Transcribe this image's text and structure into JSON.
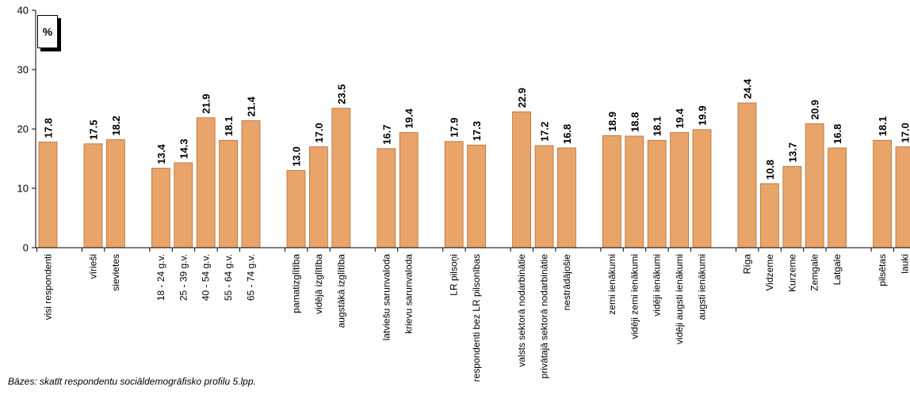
{
  "chart_data": {
    "type": "bar",
    "ylim": [
      0,
      40
    ],
    "yticks": [
      0,
      10,
      20,
      30,
      40
    ],
    "unit_label": "%",
    "bar_color": "#e8a469",
    "bar_edge_color": "#b86f35",
    "categories": [
      "visi respondenti",
      "vīrieši",
      "sievietes",
      "18 - 24 g.v.",
      "25 - 39 g.v.",
      "40 - 54 g.v.",
      "55 - 64 g.v.",
      "65 - 74 g.v.",
      "pamatizglītība",
      "vidējā izglītība",
      "augstākā izglītība",
      "latviešu sarunvaloda",
      "krievu sarunvaloda",
      "LR pilsoņi",
      "respondenti bez LR pilsonības",
      "valsts sektorā nodarbinātie",
      "privātajā sektorā nodarbinātie",
      "nestrādājošie",
      "zemi ienākumi",
      "vidēji zemi ienākumi",
      "vidēji ienākumi",
      "vidēji augsti ienākumi",
      "augsti ienākumi",
      "Rīga",
      "Vidzeme",
      "Kurzeme",
      "Zemgale",
      "Latgale",
      "pilsētas",
      "lauki"
    ],
    "values": [
      17.8,
      17.5,
      18.2,
      13.4,
      14.3,
      21.9,
      18.1,
      21.4,
      13.0,
      17.0,
      23.5,
      16.7,
      19.4,
      17.9,
      17.3,
      22.9,
      17.2,
      16.8,
      18.9,
      18.8,
      18.1,
      19.4,
      19.9,
      24.4,
      10.8,
      13.7,
      20.9,
      16.8,
      18.1,
      17.0
    ],
    "value_labels": [
      "17.8",
      "17.5",
      "18.2",
      "13.4",
      "14.3",
      "21.9",
      "18.1",
      "21.4",
      "13.0",
      "17.0",
      "23.5",
      "16.7",
      "19.4",
      "17.9",
      "17.3",
      "22.9",
      "17.2",
      "16.8",
      "18.9",
      "18.8",
      "18.1",
      "19.4",
      "19.9",
      "24.4",
      "10.8",
      "13.7",
      "20.9",
      "16.8",
      "18.1",
      "17.0"
    ],
    "groups": [
      1,
      2,
      5,
      3,
      2,
      2,
      3,
      5,
      5,
      2
    ],
    "legend": "none",
    "grid": false
  },
  "footnote": "Bāzes: skatīt respondentu sociāldemogrāfisko profilu 5.lpp."
}
